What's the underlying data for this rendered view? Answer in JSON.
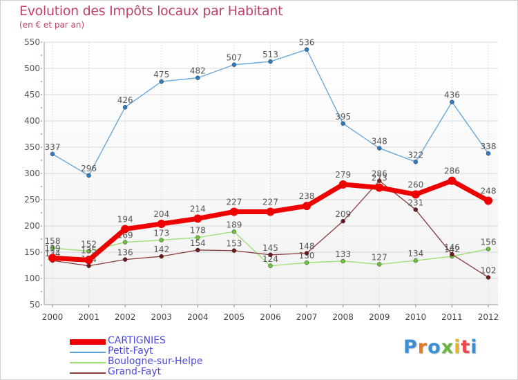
{
  "title": "Evolution des Impôts locaux par Habitant",
  "subtitle": "(en € et par an)",
  "logo": {
    "text": "Proxiti",
    "colors": [
      "#3a8fd6",
      "#e87a1e",
      "#3a8fd6",
      "#6db33f",
      "#e8b21e",
      "#e84a4a",
      "#3a8fd6"
    ]
  },
  "chart_data": {
    "type": "line",
    "x": [
      "2000",
      "2001",
      "2002",
      "2003",
      "2004",
      "2005",
      "2006",
      "2007",
      "2008",
      "2009",
      "2010",
      "2011",
      "2012"
    ],
    "ylim": [
      50,
      550
    ],
    "yticks": [
      "50",
      "100",
      "150",
      "200",
      "250",
      "300",
      "350",
      "400",
      "450",
      "500",
      "550"
    ],
    "grid": true,
    "legend_position": "bottom-left",
    "series": [
      {
        "name": "Petit-Fayt",
        "color": "#5fa2d8",
        "dot_color": "#2e7bbf",
        "values": [
          337,
          296,
          426,
          475,
          482,
          507,
          513,
          536,
          395,
          348,
          322,
          436,
          338
        ],
        "labels": [
          "337",
          "296",
          "426",
          "475",
          "482",
          "507",
          "513",
          "536",
          "395",
          "348",
          "322",
          "436",
          "338"
        ]
      },
      {
        "name": "Boulogne-sur-Helpe",
        "color": "#9ade6c",
        "dot_color": "#6cc43a",
        "values": [
          158,
          152,
          169,
          173,
          178,
          189,
          124,
          130,
          133,
          127,
          134,
          142,
          156
        ],
        "labels": [
          "158",
          "152",
          "169",
          "173",
          "178",
          "189",
          "124",
          "130",
          "133",
          "127",
          "134",
          "142",
          "156"
        ]
      },
      {
        "name": "Grand-Fayt",
        "color": "#8a3a3a",
        "dot_color": "#6a1a1a",
        "values": [
          134,
          124,
          136,
          142,
          154,
          153,
          145,
          148,
          209,
          286,
          231,
          146,
          102
        ],
        "labels": [
          "134",
          "124",
          "136",
          "142",
          "154",
          "153",
          "145",
          "148",
          "209",
          "286",
          "231",
          "146",
          "102"
        ]
      },
      {
        "name": "CARTIGNIES",
        "color": "#ee0000",
        "dot_color": "#ee0000",
        "values": [
          139,
          135,
          194,
          204,
          214,
          227,
          227,
          238,
          279,
          273,
          260,
          286,
          248
        ],
        "labels": [
          "139",
          "135",
          "194",
          "204",
          "214",
          "227",
          "227",
          "238",
          "279",
          "273",
          "260",
          "286",
          "248"
        ]
      }
    ]
  }
}
